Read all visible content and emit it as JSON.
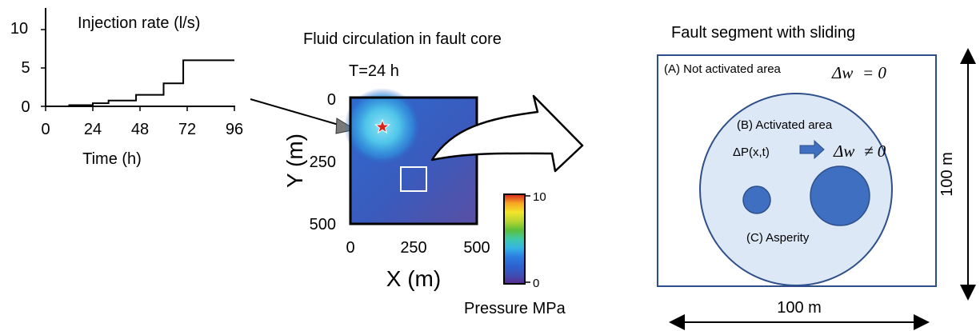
{
  "injection_panel": {
    "title": "Injection rate (l/s)",
    "xlabel": "Time (h)",
    "x_ticks": [
      "0",
      "24",
      "48",
      "72",
      "96"
    ],
    "y_ticks": [
      "0",
      "5",
      "10"
    ]
  },
  "chart_data": {
    "type": "line",
    "title": "Injection rate (l/s)",
    "xlabel": "Time (h)",
    "ylabel": "",
    "xlim": [
      0,
      96
    ],
    "ylim": [
      0,
      13
    ],
    "x_ticks": [
      0,
      24,
      48,
      72,
      96
    ],
    "y_ticks": [
      0,
      5,
      10
    ],
    "step_series": {
      "x": [
        0,
        12,
        24,
        32,
        46,
        60,
        70,
        96
      ],
      "y": [
        0,
        0.15,
        0.4,
        0.75,
        1.5,
        3.0,
        6.0,
        6.0
      ]
    }
  },
  "pressure_map": {
    "title": "Fluid circulation in fault core",
    "time_label": "T=24 h",
    "xlabel": "X (m)",
    "ylabel": "Y (m)",
    "x_ticks": [
      "0",
      "250",
      "500"
    ],
    "y_ticks": [
      "0",
      "250",
      "500"
    ],
    "colorbar_label": "Pressure MPa",
    "colorbar_max": "10",
    "colorbar_min": "0"
  },
  "fault_panel": {
    "title": "Fault segment with sliding",
    "not_activated": "(A) Not activated area",
    "activated": "(B) Activated area",
    "asperity": "(C) Asperity",
    "delta_p": "ΔP(x,t)",
    "dw_zero_sym": "Δw",
    "dw_zero_rel": "= 0",
    "dw_nonzero_sym": "Δw",
    "dw_nonzero_rel": "≠ 0",
    "width_label": "100 m",
    "height_label": "100 m"
  },
  "colors": {
    "fault_border": "#2e4f8a",
    "activated_fill": "#dce8f6",
    "asperity_fill": "#3f6fc0",
    "map_base": "#2f62c6",
    "map_low": "#5a4fa3",
    "colorbar": [
      "#5b2a8c",
      "#3d4fb5",
      "#2c7de0",
      "#33b5e5",
      "#3ec9a8",
      "#5cbf3a",
      "#b9d531",
      "#f2e52b",
      "#f6a623",
      "#ef5a22",
      "#d7261e"
    ]
  }
}
